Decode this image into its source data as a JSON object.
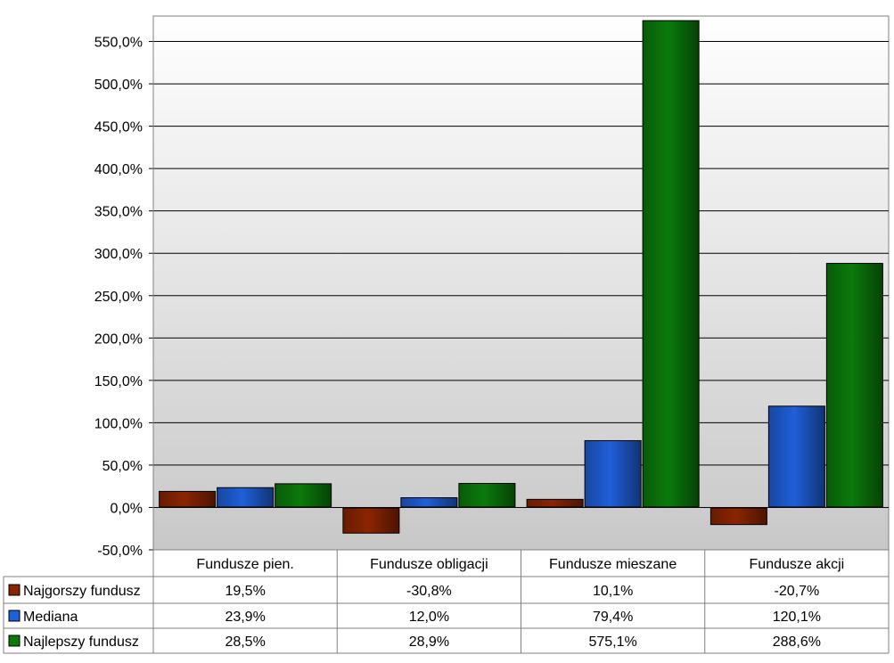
{
  "chart_data": {
    "type": "bar",
    "categories": [
      "Fundusze pien.",
      "Fundusze obligacji",
      "Fundusze mieszane",
      "Fundusze akcji"
    ],
    "series": [
      {
        "name": "Najgorszy fundusz",
        "values": [
          19.5,
          -30.8,
          10.1,
          -20.7
        ],
        "labels": [
          "19,5%",
          "-30,8%",
          "10,1%",
          "-20,7%"
        ],
        "color": "#8B2500"
      },
      {
        "name": "Mediana",
        "values": [
          23.9,
          12.0,
          79.4,
          120.1
        ],
        "labels": [
          "23,9%",
          "12,0%",
          "79,4%",
          "120,1%"
        ],
        "color": "#1F5FD8"
      },
      {
        "name": "Najlepszy fundusz",
        "values": [
          28.5,
          28.9,
          575.1,
          288.6
        ],
        "labels": [
          "28,5%",
          "28,9%",
          "575,1%",
          "288,6%"
        ],
        "color": "#0B7A0B"
      }
    ],
    "ylim": [
      -50,
      580
    ],
    "yticks": [
      -50,
      0,
      50,
      100,
      150,
      200,
      250,
      300,
      350,
      400,
      450,
      500,
      550
    ],
    "ytick_labels": [
      "-50,0%",
      "0,0%",
      "50,0%",
      "100,0%",
      "150,0%",
      "200,0%",
      "250,0%",
      "300,0%",
      "350,0%",
      "400,0%",
      "450,0%",
      "500,0%",
      "550,0%"
    ],
    "grid": true,
    "legend": "data-table"
  }
}
